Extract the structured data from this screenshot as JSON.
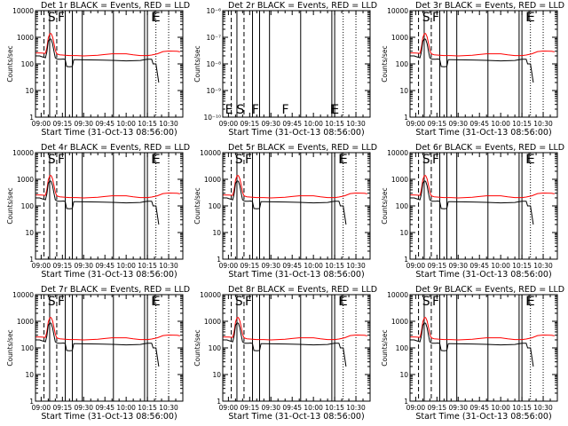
{
  "chart_data": {
    "type": "line",
    "colors": {
      "events": "#000000",
      "lld": "#ff0000"
    },
    "shared": {
      "xlabel": "Start Time (31-Oct-13 08:56:00)",
      "ylabel": "Counts/sec",
      "x_ticks": [
        "09:00",
        "09:15",
        "09:30",
        "09:45",
        "10:00",
        "10:15",
        "10:30"
      ],
      "x_range": [
        "08:56",
        "10:40"
      ],
      "y_scale": "log",
      "legend": "none",
      "grid": false
    },
    "panels": [
      {
        "title": "Det 1r BLACK = Events, RED = LLD",
        "ylim": [
          1,
          10000
        ],
        "y_ticks": [
          "1",
          "10",
          "100",
          "1000",
          "10000"
        ],
        "markers": [
          "S",
          "F",
          "F",
          "E"
        ],
        "mode": "normal"
      },
      {
        "title": "Det 2r BLACK = Events, RED = LLD",
        "ylim": [
          1e-10,
          1e-06
        ],
        "y_ticks": [
          "10⁻¹⁰",
          "10⁻⁹",
          "10⁻⁸",
          "10⁻⁷",
          "10⁻⁶"
        ],
        "markers": [
          "E",
          "S",
          "F",
          "F",
          "F",
          "E"
        ],
        "mode": "empty"
      },
      {
        "title": "Det 3r BLACK = Events, RED = LLD",
        "ylim": [
          1,
          10000
        ],
        "y_ticks": [
          "1",
          "10",
          "100",
          "1000",
          "10000"
        ],
        "markers": [
          "S",
          "F",
          "F",
          "E"
        ],
        "mode": "normal"
      },
      {
        "title": "Det 4r BLACK = Events, RED = LLD",
        "ylim": [
          1,
          10000
        ],
        "y_ticks": [
          "1",
          "10",
          "100",
          "1000",
          "10000"
        ],
        "markers": [
          "S",
          "F",
          "F",
          "E"
        ],
        "mode": "normal"
      },
      {
        "title": "Det 5r BLACK = Events, RED = LLD",
        "ylim": [
          1,
          10000
        ],
        "y_ticks": [
          "1",
          "10",
          "100",
          "1000",
          "10000"
        ],
        "markers": [
          "S",
          "F",
          "F",
          "E"
        ],
        "mode": "normal"
      },
      {
        "title": "Det 6r BLACK = Events, RED = LLD",
        "ylim": [
          1,
          10000
        ],
        "y_ticks": [
          "1",
          "10",
          "100",
          "1000",
          "10000"
        ],
        "markers": [
          "S",
          "F",
          "F",
          "E"
        ],
        "mode": "normal"
      },
      {
        "title": "Det 7r BLACK = Events, RED = LLD",
        "ylim": [
          1,
          10000
        ],
        "y_ticks": [
          "1",
          "10",
          "100",
          "1000",
          "10000"
        ],
        "markers": [
          "S",
          "F",
          "F",
          "E"
        ],
        "mode": "normal"
      },
      {
        "title": "Det 8r BLACK = Events, RED = LLD",
        "ylim": [
          1,
          10000
        ],
        "y_ticks": [
          "1",
          "10",
          "100",
          "1000",
          "10000"
        ],
        "markers": [
          "S",
          "F",
          "F",
          "E"
        ],
        "mode": "normal"
      },
      {
        "title": "Det 9r BLACK = Events, RED = LLD",
        "ylim": [
          1,
          10000
        ],
        "y_ticks": [
          "1",
          "10",
          "100",
          "1000",
          "10000"
        ],
        "markers": [
          "S",
          "F",
          "F",
          "E"
        ],
        "mode": "normal"
      }
    ],
    "events_series": [
      [
        "08:56",
        200
      ],
      [
        "08:59",
        200
      ],
      [
        "09:00",
        190
      ],
      [
        "09:03",
        170
      ],
      [
        "09:04",
        280
      ],
      [
        "09:05",
        700
      ],
      [
        "09:06",
        880
      ],
      [
        "09:07",
        840
      ],
      [
        "09:08",
        580
      ],
      [
        "09:09",
        300
      ],
      [
        "09:10",
        170
      ],
      [
        "09:11",
        155
      ],
      [
        "09:12",
        150
      ],
      [
        "09:14",
        150
      ],
      [
        "09:16",
        152
      ],
      [
        "09:17",
        145
      ],
      [
        "09:18",
        80
      ],
      [
        "09:20",
        78
      ],
      [
        "09:22",
        80
      ],
      [
        "09:23",
        145
      ],
      [
        "09:25",
        145
      ],
      [
        "09:30",
        142
      ],
      [
        "09:40",
        140
      ],
      [
        "09:50",
        136
      ],
      [
        "10:00",
        130
      ],
      [
        "10:05",
        132
      ],
      [
        "10:10",
        135
      ],
      [
        "10:13",
        145
      ],
      [
        "10:15",
        150
      ],
      [
        "10:18",
        150
      ],
      [
        "10:19",
        100
      ],
      [
        "10:21",
        100
      ],
      [
        "10:23",
        20
      ]
    ],
    "lld_series": [
      [
        "08:56",
        260
      ],
      [
        "09:00",
        255
      ],
      [
        "09:03",
        250
      ],
      [
        "09:04",
        400
      ],
      [
        "09:05",
        950
      ],
      [
        "09:06",
        1350
      ],
      [
        "09:07",
        1380
      ],
      [
        "09:08",
        1050
      ],
      [
        "09:09",
        600
      ],
      [
        "09:10",
        330
      ],
      [
        "09:11",
        240
      ],
      [
        "09:13",
        220
      ],
      [
        "09:15",
        215
      ],
      [
        "09:20",
        205
      ],
      [
        "09:25",
        205
      ],
      [
        "09:30",
        200
      ],
      [
        "09:40",
        210
      ],
      [
        "09:45",
        225
      ],
      [
        "09:50",
        240
      ],
      [
        "10:00",
        240
      ],
      [
        "10:05",
        220
      ],
      [
        "10:10",
        205
      ],
      [
        "10:15",
        205
      ],
      [
        "10:18",
        215
      ],
      [
        "10:22",
        240
      ],
      [
        "10:26",
        290
      ],
      [
        "10:30",
        305
      ],
      [
        "10:36",
        300
      ],
      [
        "10:38",
        285
      ]
    ],
    "vertical_lines": {
      "solid": [
        "09:06",
        "09:17",
        "09:22",
        "09:29",
        "09:51",
        "10:13",
        "10:15"
      ],
      "dashed": [
        "09:02",
        "09:11"
      ],
      "dotted": [
        "10:21",
        "10:30"
      ]
    }
  }
}
